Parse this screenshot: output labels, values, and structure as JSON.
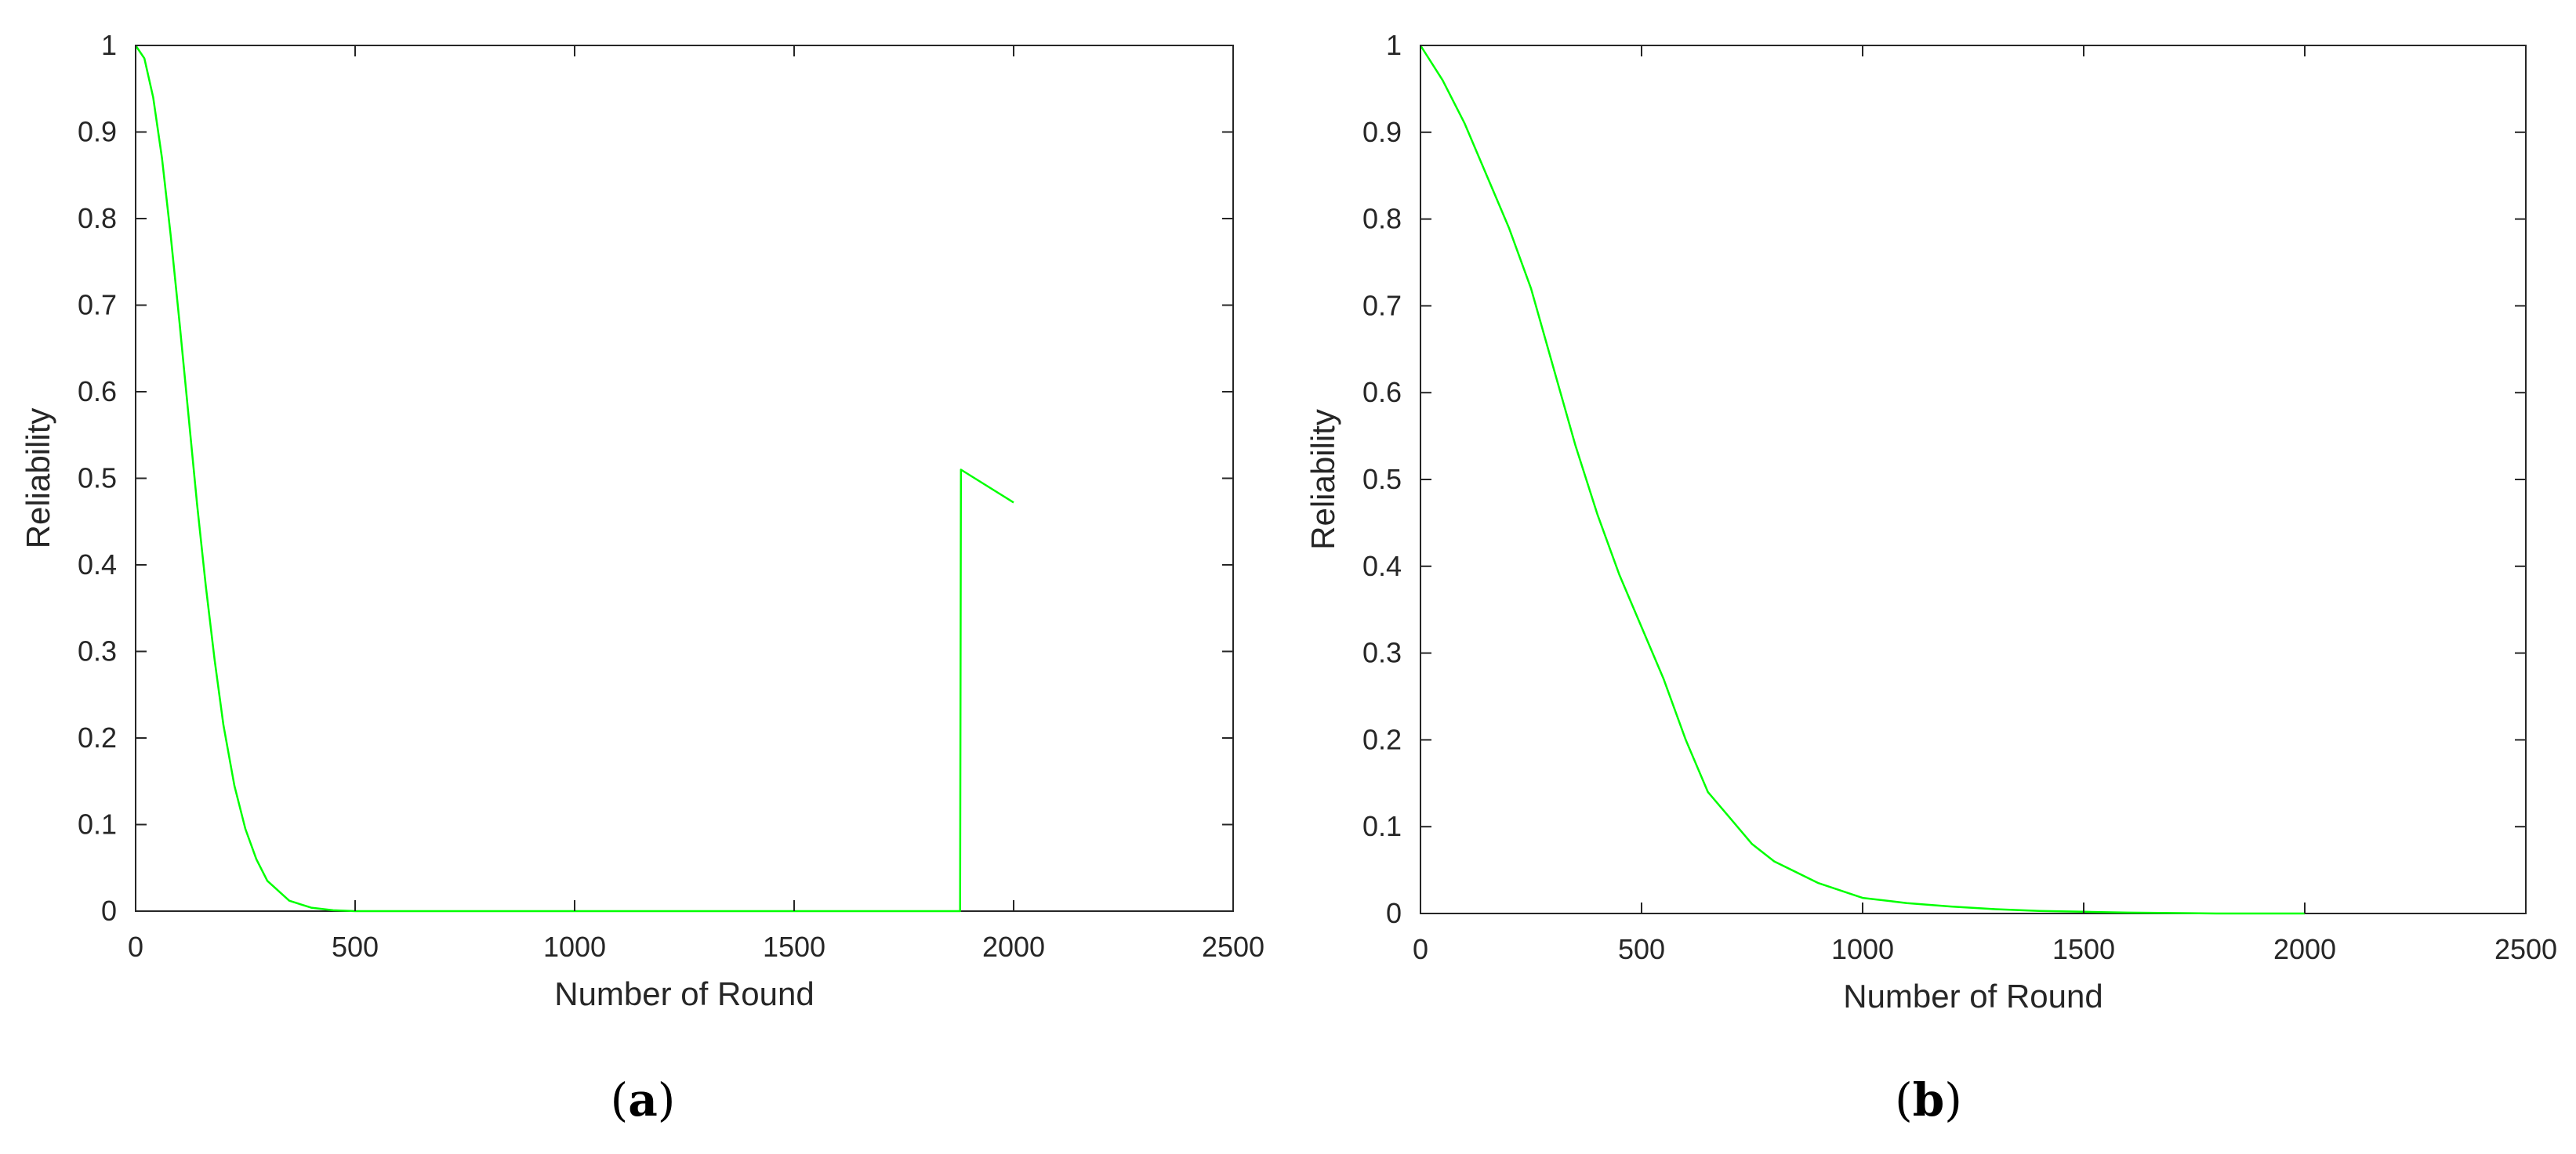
{
  "colors": {
    "series": "#00ff00",
    "axis": "#262626",
    "background": "#ffffff"
  },
  "chart_data": [
    {
      "panel": "(a)",
      "type": "line",
      "xlabel": "Number of Round",
      "ylabel": "Reliability",
      "xlim": [
        0,
        2500
      ],
      "ylim": [
        0,
        1
      ],
      "xticks": [
        0,
        500,
        1000,
        1500,
        2000,
        2500
      ],
      "yticks": [
        0,
        0.1,
        0.2,
        0.3,
        0.4,
        0.5,
        0.6,
        0.7,
        0.8,
        0.9,
        1
      ],
      "xtick_labels": [
        "0",
        "500",
        "1000",
        "1500",
        "2000",
        "2500"
      ],
      "ytick_labels": [
        "0",
        "0.1",
        "0.2",
        "0.3",
        "0.4",
        "0.5",
        "0.6",
        "0.7",
        "0.8",
        "0.9",
        "1"
      ],
      "grid": false,
      "series": [
        {
          "x": [
            0,
            20,
            40,
            60,
            80,
            100,
            120,
            140,
            160,
            180,
            200,
            225,
            250,
            275,
            300,
            350,
            400,
            450,
            500,
            1000,
            1500,
            1878,
            1880,
            2000
          ],
          "y": [
            1.0,
            0.985,
            0.94,
            0.87,
            0.78,
            0.68,
            0.575,
            0.47,
            0.375,
            0.29,
            0.215,
            0.145,
            0.095,
            0.06,
            0.035,
            0.012,
            0.004,
            0.001,
            0.0,
            0.0,
            0.0,
            0.0,
            0.51,
            0.472
          ]
        }
      ]
    },
    {
      "panel": "(b)",
      "type": "line",
      "xlabel": "Number of Round",
      "ylabel": "Reliability",
      "xlim": [
        0,
        2500
      ],
      "ylim": [
        0,
        1
      ],
      "xticks": [
        0,
        500,
        1000,
        1500,
        2000,
        2500
      ],
      "yticks": [
        0,
        0.1,
        0.2,
        0.3,
        0.4,
        0.5,
        0.6,
        0.7,
        0.8,
        0.9,
        1
      ],
      "xtick_labels": [
        "0",
        "500",
        "1000",
        "1500",
        "2000",
        "2500"
      ],
      "ytick_labels": [
        "0",
        "0.1",
        "0.2",
        "0.3",
        "0.4",
        "0.5",
        "0.6",
        "0.7",
        "0.8",
        "0.9",
        "1"
      ],
      "grid": false,
      "series": [
        {
          "x": [
            0,
            50,
            100,
            150,
            200,
            250,
            300,
            350,
            400,
            450,
            500,
            550,
            600,
            650,
            700,
            750,
            800,
            900,
            1000,
            1100,
            1200,
            1300,
            1400,
            1500,
            1600,
            1800,
            2000
          ],
          "y": [
            1.0,
            0.96,
            0.91,
            0.85,
            0.79,
            0.72,
            0.63,
            0.54,
            0.46,
            0.39,
            0.33,
            0.27,
            0.2,
            0.14,
            0.11,
            0.08,
            0.06,
            0.035,
            0.018,
            0.012,
            0.008,
            0.005,
            0.003,
            0.002,
            0.001,
            0.0,
            0.0
          ]
        }
      ]
    }
  ]
}
